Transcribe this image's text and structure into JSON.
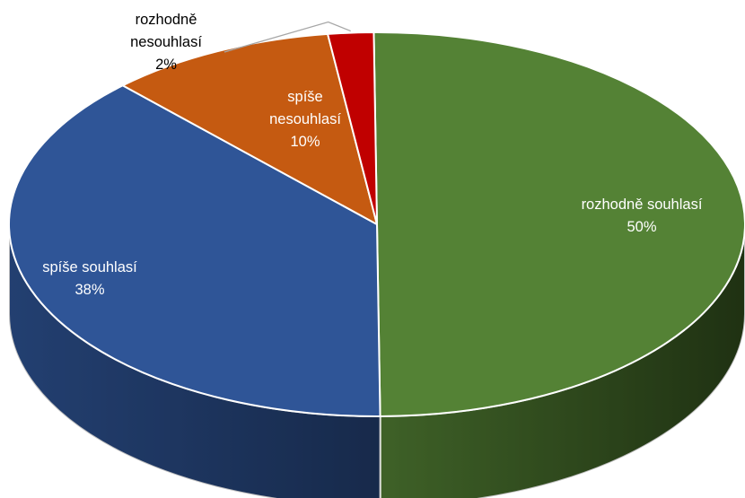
{
  "chart_data": {
    "type": "pie",
    "style": "3d",
    "categories": [
      "rozhodně souhlasí",
      "spíše souhlasí",
      "spíše nesouhlasí",
      "rozhodně nesouhlasí"
    ],
    "values": [
      50,
      38,
      10,
      2
    ],
    "value_labels": [
      "50%",
      "38%",
      "10%",
      "2%"
    ],
    "label_lines": [
      [
        "rozhodně souhlasí"
      ],
      [
        "spíše souhlasí"
      ],
      [
        "spíše",
        "nesouhlasí"
      ],
      [
        "rozhodně",
        "nesouhlasí"
      ]
    ],
    "colors": [
      "#548235",
      "#2F5597",
      "#C55A11",
      "#C00000"
    ],
    "side_colors": [
      "#2A4219",
      "#1F3864",
      "#843C0C",
      "#7B0000"
    ]
  }
}
